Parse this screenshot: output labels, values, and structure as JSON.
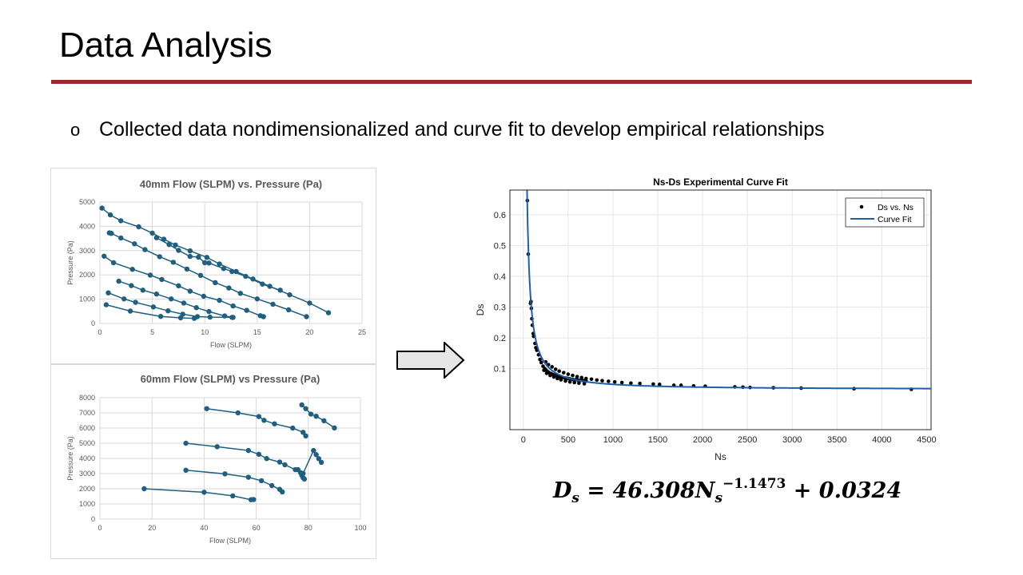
{
  "slide": {
    "title": "Data Analysis",
    "bullet_marker": "o",
    "bullet_text": "Collected data nondimensionalized and curve fit to develop empirical relationships",
    "accent_color": "#9c2b2b",
    "arrow_icon": "right-arrow-icon"
  },
  "equation": {
    "lhs_symbol": "D",
    "lhs_sub": "s",
    "equals": "=",
    "coefficient": "46.308",
    "var_symbol": "N",
    "var_sub": "s",
    "exponent": "−1.1473",
    "plus": "+",
    "constant": "0.0324"
  },
  "chart_data": [
    {
      "type": "scatter",
      "title": "40mm Flow (SLPM) vs. Pressure (Pa)",
      "xlabel": "Flow (SLPM)",
      "ylabel": "Pressure (Pa)",
      "xlim": [
        0,
        25
      ],
      "ylim": [
        0,
        5000
      ],
      "xticks": [
        0,
        5,
        10,
        15,
        20,
        25
      ],
      "yticks": [
        0,
        1000,
        2000,
        3000,
        4000,
        5000
      ],
      "grid": true,
      "color": "#1f5f7f",
      "series": [
        {
          "x": [
            0.2,
            1.0,
            2.0,
            3.7,
            5.0,
            6.1,
            7.2,
            8.6,
            10.2,
            11.4,
            13.0,
            14.6,
            16.2,
            18.1,
            20.0,
            21.8
          ],
          "y": [
            4750,
            4470,
            4230,
            3980,
            3720,
            3470,
            3230,
            2990,
            2720,
            2450,
            2140,
            1830,
            1530,
            1180,
            840,
            440
          ]
        },
        {
          "x": [
            0.9,
            1.1,
            2.0,
            3.3,
            4.3,
            5.7,
            7.0,
            8.3,
            9.6,
            11.0,
            12.3,
            13.4,
            15.0,
            16.5,
            18.0,
            19.7
          ],
          "y": [
            3730,
            3710,
            3520,
            3280,
            3040,
            2750,
            2520,
            2240,
            1980,
            1680,
            1460,
            1240,
            1010,
            790,
            560,
            280
          ]
        },
        {
          "x": [
            5.4,
            6.6,
            7.5,
            8.6,
            9.4,
            10.0,
            10.4,
            11.8,
            12.6,
            13.9,
            15.5,
            17.2
          ],
          "y": [
            3530,
            3250,
            3010,
            2760,
            2730,
            2500,
            2490,
            2260,
            2140,
            1940,
            1620,
            1370
          ]
        },
        {
          "x": [
            0.4,
            1.3,
            3.1,
            4.8,
            5.9,
            7.5,
            8.6,
            9.9,
            11.4,
            12.7,
            14.0,
            15.3,
            15.6
          ],
          "y": [
            2770,
            2500,
            2230,
            1990,
            1810,
            1550,
            1330,
            1120,
            950,
            720,
            540,
            320,
            280
          ]
        },
        {
          "x": [
            1.8,
            3.0,
            4.1,
            5.4,
            6.8,
            8.0,
            9.2,
            10.4,
            11.9,
            12.6
          ],
          "y": [
            1740,
            1560,
            1370,
            1210,
            1010,
            840,
            650,
            490,
            310,
            250
          ]
        },
        {
          "x": [
            0.8,
            2.3,
            3.4,
            5.1,
            6.5,
            7.9,
            9.3,
            10.5,
            12.7
          ],
          "y": [
            1260,
            1010,
            870,
            680,
            520,
            380,
            280,
            260,
            250
          ]
        },
        {
          "x": [
            0.6,
            2.9,
            5.8,
            7.7,
            9.0
          ],
          "y": [
            770,
            510,
            290,
            230,
            210
          ]
        }
      ]
    },
    {
      "type": "scatter",
      "title": "60mm Flow (SLPM) vs Pressure (Pa)",
      "xlabel": "Flow (SLPM)",
      "ylabel": "Pressure (Pa)",
      "xlim": [
        0,
        100
      ],
      "ylim": [
        0,
        8000
      ],
      "xticks": [
        0,
        20,
        40,
        60,
        80,
        100
      ],
      "yticks": [
        0,
        1000,
        2000,
        3000,
        4000,
        5000,
        6000,
        7000,
        8000
      ],
      "grid": true,
      "color": "#1f5f7f",
      "series": [
        {
          "x": [
            41,
            53,
            61,
            63,
            67,
            74,
            78,
            79
          ],
          "y": [
            7280,
            7000,
            6760,
            6510,
            6280,
            6000,
            5720,
            5480
          ]
        },
        {
          "x": [
            77.5,
            79,
            81,
            83,
            86,
            90
          ],
          "y": [
            7530,
            7280,
            6920,
            6780,
            6480,
            6010
          ]
        },
        {
          "x": [
            33,
            45,
            57,
            61,
            64,
            69,
            71,
            75,
            78,
            82,
            83,
            84,
            85
          ],
          "y": [
            5000,
            4770,
            4520,
            4270,
            3990,
            3760,
            3580,
            3260,
            3010,
            4520,
            4250,
            3980,
            3740
          ]
        },
        {
          "x": [
            33,
            48,
            57,
            62,
            66,
            69,
            70
          ],
          "y": [
            3220,
            2980,
            2760,
            2530,
            2210,
            1960,
            1790
          ]
        },
        {
          "x": [
            76,
            77,
            77.5,
            78,
            78.5
          ],
          "y": [
            3260,
            3060,
            2880,
            2720,
            2640
          ]
        },
        {
          "x": [
            17,
            40,
            51,
            58,
            59
          ],
          "y": [
            2000,
            1770,
            1530,
            1280,
            1290
          ]
        }
      ]
    },
    {
      "type": "scatter",
      "title": "Ns-Ds Experimental Curve Fit",
      "xlabel": "Ns",
      "ylabel": "Ds",
      "xlim": [
        -150,
        4550
      ],
      "ylim": [
        -0.098,
        0.68
      ],
      "xticks": [
        0,
        500,
        1000,
        1500,
        2000,
        2500,
        3000,
        3500,
        4000,
        4500
      ],
      "yticks": [
        0.1,
        0.2,
        0.3,
        0.4,
        0.5,
        0.6
      ],
      "grid": true,
      "legend": {
        "position": "top-right",
        "entries": [
          "Ds vs. Ns",
          "Curve Fit"
        ]
      },
      "fit": {
        "a": 46.308,
        "b": -1.1473,
        "c": 0.0324,
        "name": "Curve Fit",
        "color": "#1f5fa8"
      },
      "points": {
        "name": "Ds vs. Ns",
        "color": "#000000",
        "x": [
          45,
          55,
          80,
          85,
          90,
          95,
          100,
          110,
          115,
          130,
          140,
          150,
          170,
          185,
          200,
          220,
          240,
          255,
          275,
          290,
          310,
          330,
          350,
          370,
          390,
          410,
          430,
          460,
          480,
          500,
          520,
          550,
          580,
          610,
          640,
          670,
          700,
          230,
          260,
          300,
          340,
          380,
          420,
          470,
          520,
          570,
          620,
          680,
          250,
          280,
          320,
          360,
          400,
          450,
          500,
          550,
          600,
          650,
          700,
          760,
          820,
          880,
          950,
          1020,
          1100,
          1200,
          1300,
          1450,
          1520,
          1680,
          1760,
          1900,
          2030,
          2360,
          2450,
          2530,
          2790,
          3100,
          3690,
          4330
        ],
        "y": [
          0.646,
          0.472,
          0.312,
          0.318,
          0.296,
          0.262,
          0.241,
          0.214,
          0.205,
          0.182,
          0.168,
          0.16,
          0.145,
          0.13,
          0.12,
          0.108,
          0.1,
          0.095,
          0.09,
          0.086,
          0.084,
          0.081,
          0.079,
          0.077,
          0.075,
          0.073,
          0.072,
          0.07,
          0.069,
          0.068,
          0.067,
          0.065,
          0.064,
          0.063,
          0.062,
          0.061,
          0.06,
          0.095,
          0.085,
          0.078,
          0.073,
          0.068,
          0.064,
          0.06,
          0.057,
          0.055,
          0.053,
          0.051,
          0.122,
          0.113,
          0.106,
          0.098,
          0.092,
          0.087,
          0.082,
          0.078,
          0.074,
          0.071,
          0.068,
          0.066,
          0.063,
          0.061,
          0.059,
          0.057,
          0.055,
          0.053,
          0.052,
          0.05,
          0.049,
          0.046,
          0.046,
          0.044,
          0.043,
          0.041,
          0.04,
          0.039,
          0.038,
          0.037,
          0.035,
          0.033
        ]
      }
    }
  ]
}
